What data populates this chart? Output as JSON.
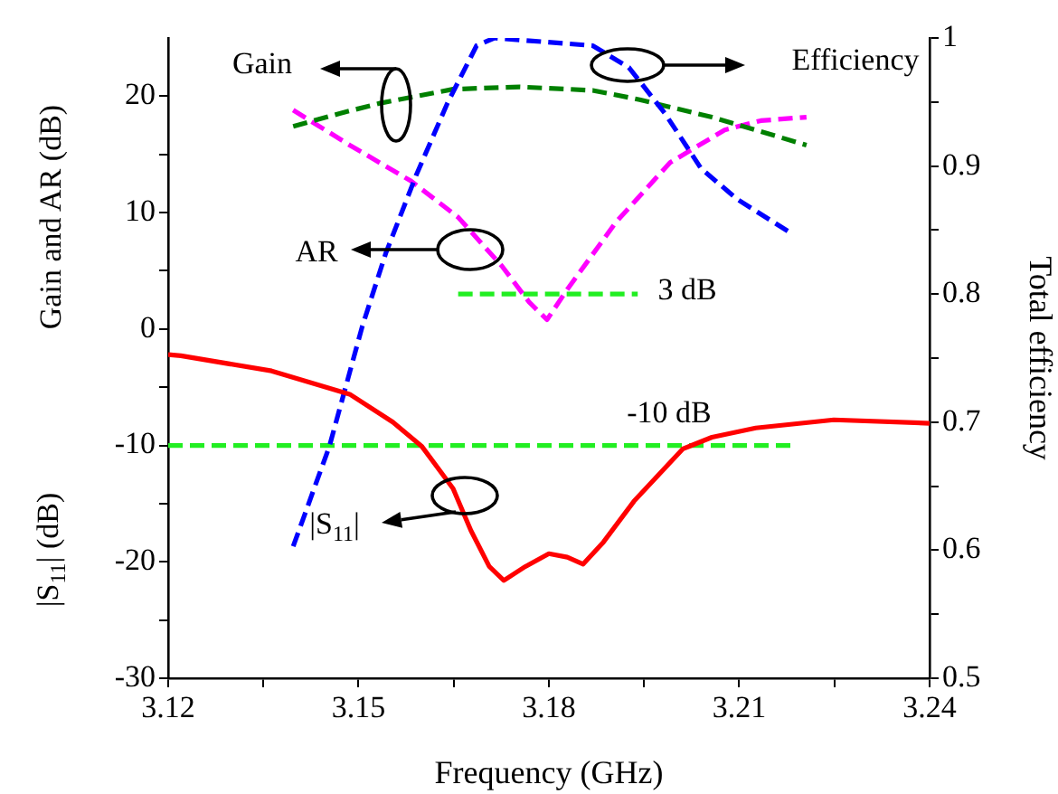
{
  "chart_data": {
    "type": "line",
    "xlabel": "Frequency (GHz)",
    "ylabel": "Gain and AR (dB)",
    "y2label": "Total efficiency",
    "xlim": [
      3.12,
      3.24
    ],
    "xticks": [
      3.12,
      {
        "value": 3.135,
        "label": null
      },
      3.15,
      {
        "value": 3.165,
        "label": null
      },
      3.18,
      {
        "value": 3.195,
        "label": null
      },
      3.21,
      {
        "value": 3.225,
        "label": null
      },
      3.24
    ],
    "ylim": [
      -30,
      25
    ],
    "yticks": [
      -30,
      {
        "value": -25,
        "label": null
      },
      -20,
      {
        "value": -15,
        "label": null
      },
      -10,
      {
        "value": -5,
        "label": null
      },
      0,
      {
        "value": 5,
        "label": null
      },
      10,
      {
        "value": 15,
        "label": null
      },
      20
    ],
    "y2lim": [
      0.5,
      1.0
    ],
    "y2ticks": [
      0.5,
      {
        "value": 0.55,
        "label": null
      },
      0.6,
      {
        "value": 0.65,
        "label": null
      },
      0.7,
      {
        "value": 0.75,
        "label": null
      },
      0.8,
      {
        "value": 0.85,
        "label": null
      },
      0.9,
      {
        "value": 0.95,
        "label": null
      },
      1.0
    ],
    "grid": false,
    "legend": false,
    "marker": "none",
    "series": [
      {
        "color": "#ff0000",
        "line_style": "solid",
        "x": [
          3.12,
          3.122,
          3.1363,
          3.1486,
          3.1554,
          3.16,
          3.1649,
          3.1677,
          3.1706,
          3.1729,
          3.1763,
          3.18,
          3.1829,
          3.1854,
          3.1886,
          3.1934,
          3.2011,
          3.2057,
          3.2126,
          3.2249,
          3.24
        ],
        "values": [
          -2.2,
          -2.3,
          -3.6,
          -5.6,
          -8.0,
          -10.1,
          -13.7,
          -17.3,
          -20.4,
          -21.6,
          -20.4,
          -19.3,
          -19.6,
          -20.2,
          -18.3,
          -14.8,
          -10.3,
          -9.3,
          -8.5,
          -7.8,
          -8.1
        ]
      },
      {
        "color": "#0000ff",
        "line_style": "dashed",
        "axis": "y2",
        "x": [
          3.1397,
          3.1454,
          3.1506,
          3.1543,
          3.1591,
          3.164,
          3.1686,
          3.1714,
          3.1869,
          3.1926,
          3.1983,
          3.204,
          3.2097,
          3.2177
        ],
        "values": [
          0.603,
          0.681,
          0.775,
          0.832,
          0.893,
          0.949,
          0.994,
          1.0,
          0.994,
          0.977,
          0.941,
          0.898,
          0.874,
          0.849
        ]
      },
      {
        "color": "#008000",
        "line_style": "dashed",
        "x": [
          3.1397,
          3.1469,
          3.1534,
          3.1649,
          3.1754,
          3.1869,
          3.1943,
          3.2057,
          3.2206
        ],
        "values": [
          17.4,
          18.5,
          19.4,
          20.6,
          20.8,
          20.5,
          19.7,
          18.2,
          15.8
        ]
      },
      {
        "color": "#ff00ff",
        "line_style": "dashed",
        "x": [
          3.1397,
          3.1486,
          3.1583,
          3.1657,
          3.1726,
          3.1769,
          3.1797,
          3.1829,
          3.1906,
          3.1991,
          3.2077,
          3.2134,
          3.2206
        ],
        "values": [
          18.8,
          15.8,
          12.7,
          9.6,
          5.4,
          2.3,
          0.8,
          3.4,
          9.2,
          14.3,
          17.1,
          17.9,
          18.2
        ]
      },
      {
        "color": "#22ee22",
        "line_style": "dashed",
        "x": [
          3.12,
          3.219
        ],
        "values": [
          -10,
          -10
        ]
      },
      {
        "color": "#22ee22",
        "line_style": "dashed",
        "x": [
          3.1657,
          3.194
        ],
        "values": [
          3,
          3
        ]
      }
    ],
    "annotations": [
      "|S$_{11}$| (dB)",
      "Gain",
      "Efficiency",
      "AR",
      "|S$_{11}$|",
      "3 dB",
      "-10 dB"
    ]
  }
}
